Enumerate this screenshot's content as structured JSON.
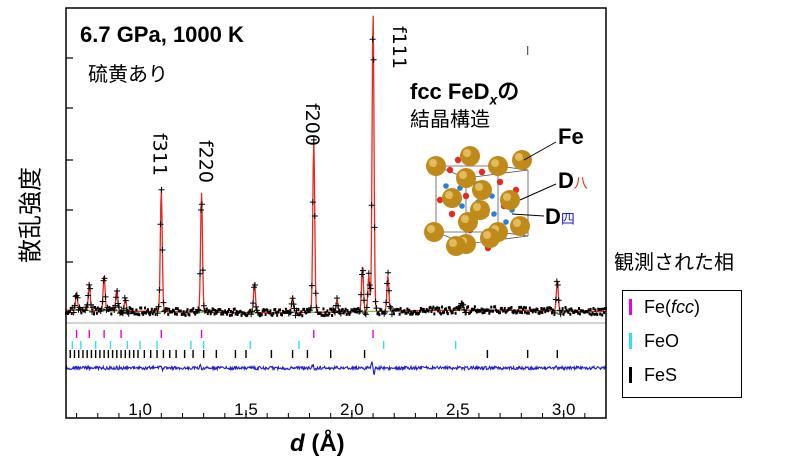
{
  "chart_data": {
    "type": "line",
    "xlabel_italic": "d",
    "xlabel_rest": " (Å)",
    "ylabel": "散乱強度",
    "xlim": [
      0.65,
      3.2
    ],
    "xticks": [
      1.0,
      1.5,
      2.0,
      2.5,
      3.0
    ],
    "xtick_labels": [
      "1.0",
      "1.5",
      "2.0",
      "2.5",
      "3.0"
    ],
    "conditions": "6.7 GPa, 1000 K",
    "conditions_sub": "硫黄あり",
    "peaks": [
      {
        "label": "f311",
        "d": 1.1,
        "intensity": 0.41
      },
      {
        "label": "f220",
        "d": 1.29,
        "intensity": 0.4
      },
      {
        "label": "f200",
        "d": 1.82,
        "intensity": 0.58
      },
      {
        "label": "f111",
        "d": 2.1,
        "intensity": 1.0
      }
    ],
    "minor_peaks": [
      {
        "d": 0.7,
        "intensity": 0.06
      },
      {
        "d": 0.76,
        "intensity": 0.09
      },
      {
        "d": 0.83,
        "intensity": 0.12
      },
      {
        "d": 0.89,
        "intensity": 0.07
      },
      {
        "d": 0.93,
        "intensity": 0.04
      },
      {
        "d": 1.54,
        "intensity": 0.1
      },
      {
        "d": 1.72,
        "intensity": 0.05
      },
      {
        "d": 1.93,
        "intensity": 0.04
      },
      {
        "d": 2.05,
        "intensity": 0.15
      },
      {
        "d": 2.08,
        "intensity": 0.12
      },
      {
        "d": 2.17,
        "intensity": 0.12
      },
      {
        "d": 2.52,
        "intensity": 0.03
      },
      {
        "d": 2.97,
        "intensity": 0.1
      }
    ],
    "series": [
      {
        "name": "Fe(fcc)",
        "name_main": "Fe(",
        "name_italic": "fcc",
        "name_end": ")",
        "color": "#e600e6",
        "ticks": [
          0.7,
          0.76,
          0.83,
          0.91,
          1.1,
          1.29,
          1.82,
          2.1
        ]
      },
      {
        "name": "FeO",
        "color": "#33e0e8",
        "ticks": [
          0.68,
          0.72,
          0.79,
          0.86,
          0.94,
          1.0,
          1.08,
          1.24,
          1.3,
          1.52,
          1.75,
          2.15,
          2.49
        ]
      },
      {
        "name": "FeS",
        "color": "#000000",
        "ticks": [
          0.67,
          0.69,
          0.71,
          0.73,
          0.75,
          0.77,
          0.79,
          0.81,
          0.83,
          0.85,
          0.87,
          0.89,
          0.91,
          0.93,
          0.95,
          0.97,
          0.99,
          1.02,
          1.05,
          1.08,
          1.11,
          1.14,
          1.17,
          1.21,
          1.25,
          1.3,
          1.36,
          1.45,
          1.5,
          1.62,
          1.72,
          1.79,
          1.9,
          2.06,
          2.64,
          2.83,
          2.97
        ]
      }
    ],
    "phases_title": "観測された相",
    "inset": {
      "title_main": "fcc FeD",
      "title_sub": "x",
      "title_end": "の",
      "title_line2": "結晶構造",
      "label_fe": "Fe",
      "label_d8": "D",
      "label_d8_site": "八",
      "label_d4": "D",
      "label_d4_site": "四"
    },
    "colors": {
      "observed": "#000000",
      "calculated": "#e8291f",
      "background": "#66cc33",
      "difference": "#1f1fd6",
      "fe_atom": "#c08a1a",
      "oct_site": "#e8291f",
      "tet_site": "#2a7fd8"
    }
  }
}
